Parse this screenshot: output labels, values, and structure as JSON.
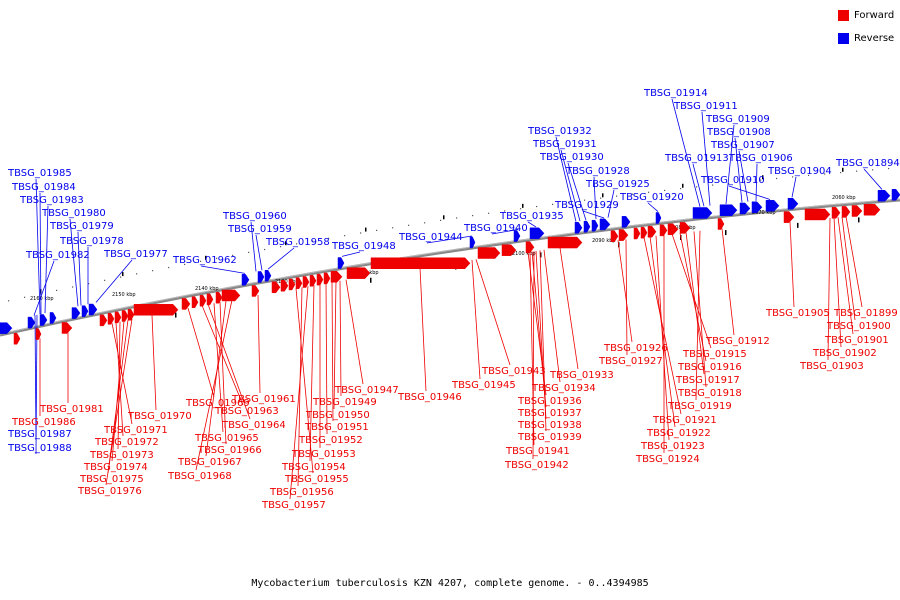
{
  "legend": [
    {
      "label": "Forward",
      "color": "#ee0000"
    },
    {
      "label": "Reverse",
      "color": "#0000ee"
    }
  ],
  "caption": "Mycobacterium tuberculosis KZN 4207, complete genome. - 0..4394985",
  "colors": {
    "forward": "#ee0000",
    "reverse": "#0000ee",
    "backbone": "#888888"
  },
  "chart_data": {
    "type": "circular-genome-map-zoom",
    "ruler_labels": [
      "2160 kbp",
      "2150 kbp",
      "2140 kbp",
      "2130 kbp",
      "2120 kbp",
      "2110 kbp",
      "2100 kbp",
      "2090 kbp",
      "2080 kbp",
      "2070 kbp",
      "2060 kbp"
    ],
    "forward_genes": [
      "TBSG_01981",
      "TBSG_01986",
      "TBSG_01971",
      "TBSG_01972",
      "TBSG_01973",
      "TBSG_01974",
      "TBSG_01975",
      "TBSG_01976",
      "TBSG_01970",
      "TBSG_01969",
      "TBSG_01963",
      "TBSG_01964",
      "TBSG_01965",
      "TBSG_01966",
      "TBSG_01967",
      "TBSG_01968",
      "TBSG_01961",
      "TBSG_01955",
      "TBSG_01956",
      "TBSG_01957",
      "TBSG_01954",
      "TBSG_01953",
      "TBSG_01952",
      "TBSG_01951",
      "TBSG_01950",
      "TBSG_01949",
      "TBSG_01947",
      "TBSG_01946",
      "TBSG_01943",
      "TBSG_01945",
      "TBSG_01936",
      "TBSG_01937",
      "TBSG_01938",
      "TBSG_01939",
      "TBSG_01941",
      "TBSG_01942",
      "TBSG_01934",
      "TBSG_01933",
      "TBSG_01926",
      "TBSG_01927",
      "TBSG_01915",
      "TBSG_01916",
      "TBSG_01917",
      "TBSG_01918",
      "TBSG_01919",
      "TBSG_01921",
      "TBSG_01922",
      "TBSG_01923",
      "TBSG_01924",
      "TBSG_01912",
      "TBSG_01905",
      "TBSG_01899",
      "TBSG_01900",
      "TBSG_01901",
      "TBSG_01902",
      "TBSG_01903"
    ],
    "reverse_genes": [
      "TBSG_01985",
      "TBSG_01984",
      "TBSG_01983",
      "TBSG_01980",
      "TBSG_01979",
      "TBSG_01978",
      "TBSG_01982",
      "TBSG_01977",
      "TBSG_01987",
      "TBSG_01988",
      "TBSG_01962",
      "TBSG_01960",
      "TBSG_01959",
      "TBSG_01958",
      "TBSG_01948",
      "TBSG_01944",
      "TBSG_01940",
      "TBSG_01935",
      "TBSG_01932",
      "TBSG_01931",
      "TBSG_01930",
      "TBSG_01928",
      "TBSG_01929",
      "TBSG_01925",
      "TBSG_01920",
      "TBSG_01914",
      "TBSG_01911",
      "TBSG_01909",
      "TBSG_01908",
      "TBSG_01907",
      "TBSG_01913",
      "TBSG_01906",
      "TBSG_01910",
      "TBSG_01904",
      "TBSG_01894"
    ]
  }
}
